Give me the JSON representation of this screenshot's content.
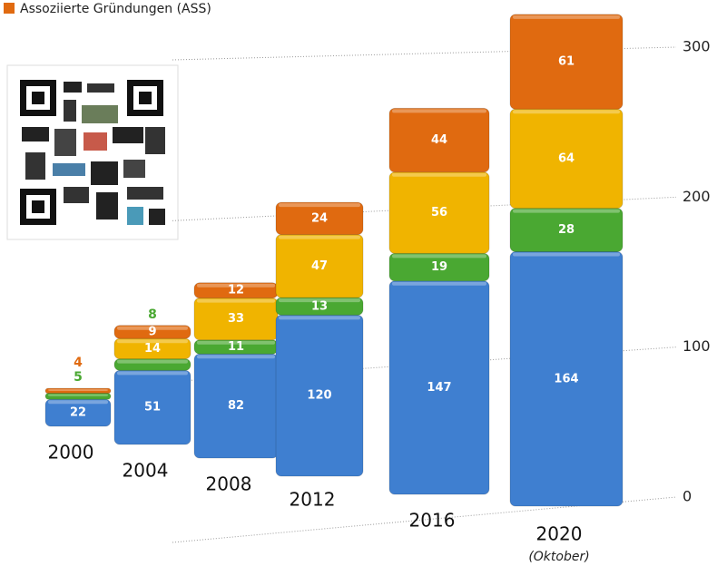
{
  "chart_data": {
    "type": "bar",
    "stacked": true,
    "categories": [
      "2000",
      "2004",
      "2008",
      "2012",
      "2016",
      "2020"
    ],
    "annotations": [
      "(Oktober)"
    ],
    "series": [
      {
        "color": "#3f7fd0",
        "values": [
          22,
          51,
          82,
          120,
          147,
          164
        ]
      },
      {
        "color": "#4aa832",
        "values": [
          5,
          8,
          11,
          13,
          19,
          28
        ]
      },
      {
        "color": "#f0b400",
        "values": [
          null,
          14,
          33,
          47,
          56,
          64
        ]
      },
      {
        "name": "Assoziierte Gründungen (ASS)",
        "color": "#e06a10",
        "values": [
          4,
          9,
          12,
          24,
          44,
          61
        ]
      }
    ],
    "ylim": [
      0,
      300
    ],
    "yticks": [
      0,
      100,
      200,
      300
    ],
    "grid": true,
    "legend": "top-left"
  }
}
